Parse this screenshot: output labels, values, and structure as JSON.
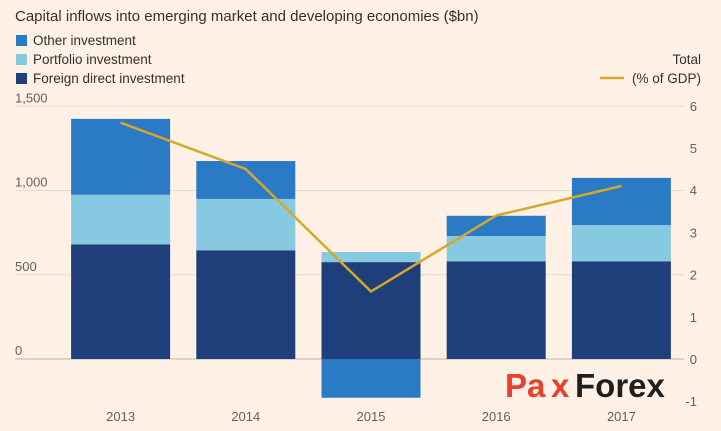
{
  "chart_data": {
    "type": "bar",
    "title": "Capital inflows into emerging market and developing economies ($bn)",
    "categories": [
      "2013",
      "2014",
      "2015",
      "2016",
      "2017"
    ],
    "series": [
      {
        "name": "Foreign direct investment",
        "values": [
          680,
          645,
          575,
          580,
          580
        ],
        "color": "#1e3f7a"
      },
      {
        "name": "Portfolio investment",
        "values": [
          295,
          305,
          60,
          150,
          215
        ],
        "color": "#86c9e0"
      },
      {
        "name": "Other investment",
        "values": [
          450,
          225,
          -230,
          120,
          280
        ],
        "color": "#2b7ac6"
      }
    ],
    "line_series": {
      "name": "Total (% of GDP)",
      "values": [
        5.6,
        4.5,
        1.6,
        3.4,
        4.1
      ],
      "color": "#d6a82a"
    },
    "y_left": {
      "ticks": [
        "1,500",
        "1,000",
        "500",
        "0"
      ],
      "tick_values": [
        1500,
        1000,
        500,
        0
      ],
      "ylim": [
        -250,
        1550
      ]
    },
    "y_right": {
      "label_line1": "Total",
      "ticks": [
        "6",
        "5",
        "4",
        "3",
        "2",
        "1",
        "0",
        "-1"
      ],
      "tick_values": [
        6,
        5,
        4,
        3,
        2,
        1,
        0,
        -1
      ],
      "ylim": [
        -1,
        6
      ]
    },
    "legend_placement": "top-left",
    "grid": true
  },
  "watermark": {
    "part1": "Pa",
    "part2": "x",
    "part3": "Forex"
  }
}
